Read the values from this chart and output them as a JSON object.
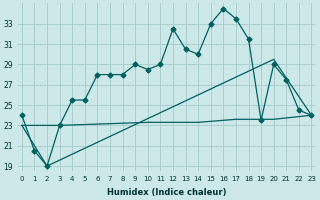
{
  "xlabel": "Humidex (Indice chaleur)",
  "bg_color": "#cce8e8",
  "grid_color": "#aacece",
  "line_color": "#006060",
  "line1_x": [
    0,
    1,
    2,
    3,
    4,
    5,
    6,
    7,
    8,
    9,
    10,
    11,
    12,
    13,
    14,
    15,
    16,
    17,
    18,
    19,
    20,
    21,
    22,
    23
  ],
  "line1_y": [
    24,
    20.5,
    19,
    23,
    25.5,
    25.5,
    28,
    28,
    28,
    29,
    28.5,
    29,
    32.5,
    30.5,
    30,
    33,
    34.5,
    33.5,
    31.5,
    23.5,
    29,
    27.5,
    24.5,
    24
  ],
  "line2_x": [
    0,
    3,
    10,
    14,
    17,
    20,
    23
  ],
  "line2_y": [
    23,
    23,
    23.3,
    23.3,
    23.6,
    23.6,
    24
  ],
  "line3_x": [
    0,
    2,
    20,
    23
  ],
  "line3_y": [
    23,
    19,
    29.5,
    24
  ],
  "ylim": [
    18.5,
    35
  ],
  "xlim": [
    -0.3,
    23.3
  ],
  "yticks": [
    19,
    21,
    23,
    25,
    27,
    29,
    31,
    33
  ],
  "xticks": [
    0,
    1,
    2,
    3,
    4,
    5,
    6,
    7,
    8,
    9,
    10,
    11,
    12,
    13,
    14,
    15,
    16,
    17,
    18,
    19,
    20,
    21,
    22,
    23
  ]
}
